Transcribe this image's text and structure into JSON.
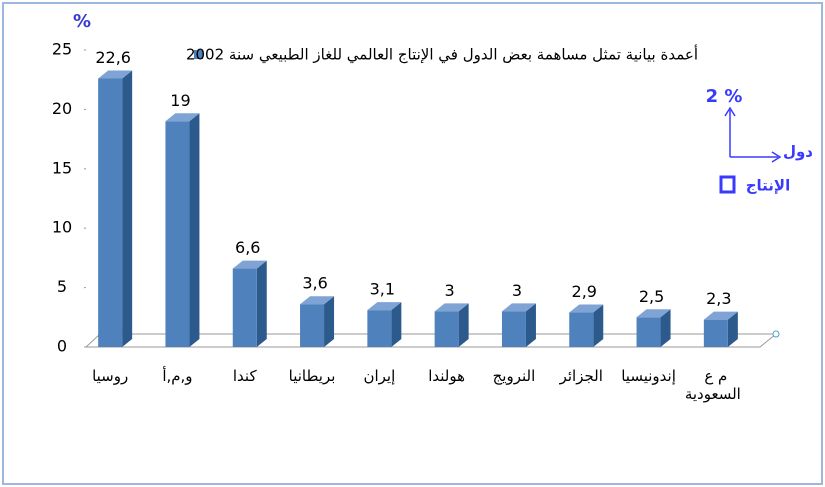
{
  "chart_data": {
    "type": "bar3d",
    "y_label": "%",
    "categories": [
      "روسيا",
      "و,م,أ",
      "كندا",
      "بريطانيا",
      "إيران",
      "هولندا",
      "النرويج",
      "الجزائر",
      "إندونيسيا",
      "م ع السعودية"
    ],
    "series": [
      {
        "name": "أعمدة بيانية تمثل مساهمة بعض الدول في الإنتاج العالمي للغاز الطبيعي سنة 2002",
        "color": "#4f81bd",
        "values": [
          22.6,
          19,
          6.6,
          3.6,
          3.1,
          3,
          3,
          2.9,
          2.5,
          2.3
        ],
        "value_labels": [
          "22,6",
          "19",
          "6,6",
          "3,6",
          "3,1",
          "3",
          "3",
          "2,9",
          "2,5",
          "2,3"
        ]
      }
    ],
    "ylim": [
      0,
      25
    ],
    "yticks": [
      0,
      5,
      10,
      15,
      20,
      25
    ],
    "annotations": [
      "% 2",
      "دول",
      "الإنتاج"
    ]
  }
}
